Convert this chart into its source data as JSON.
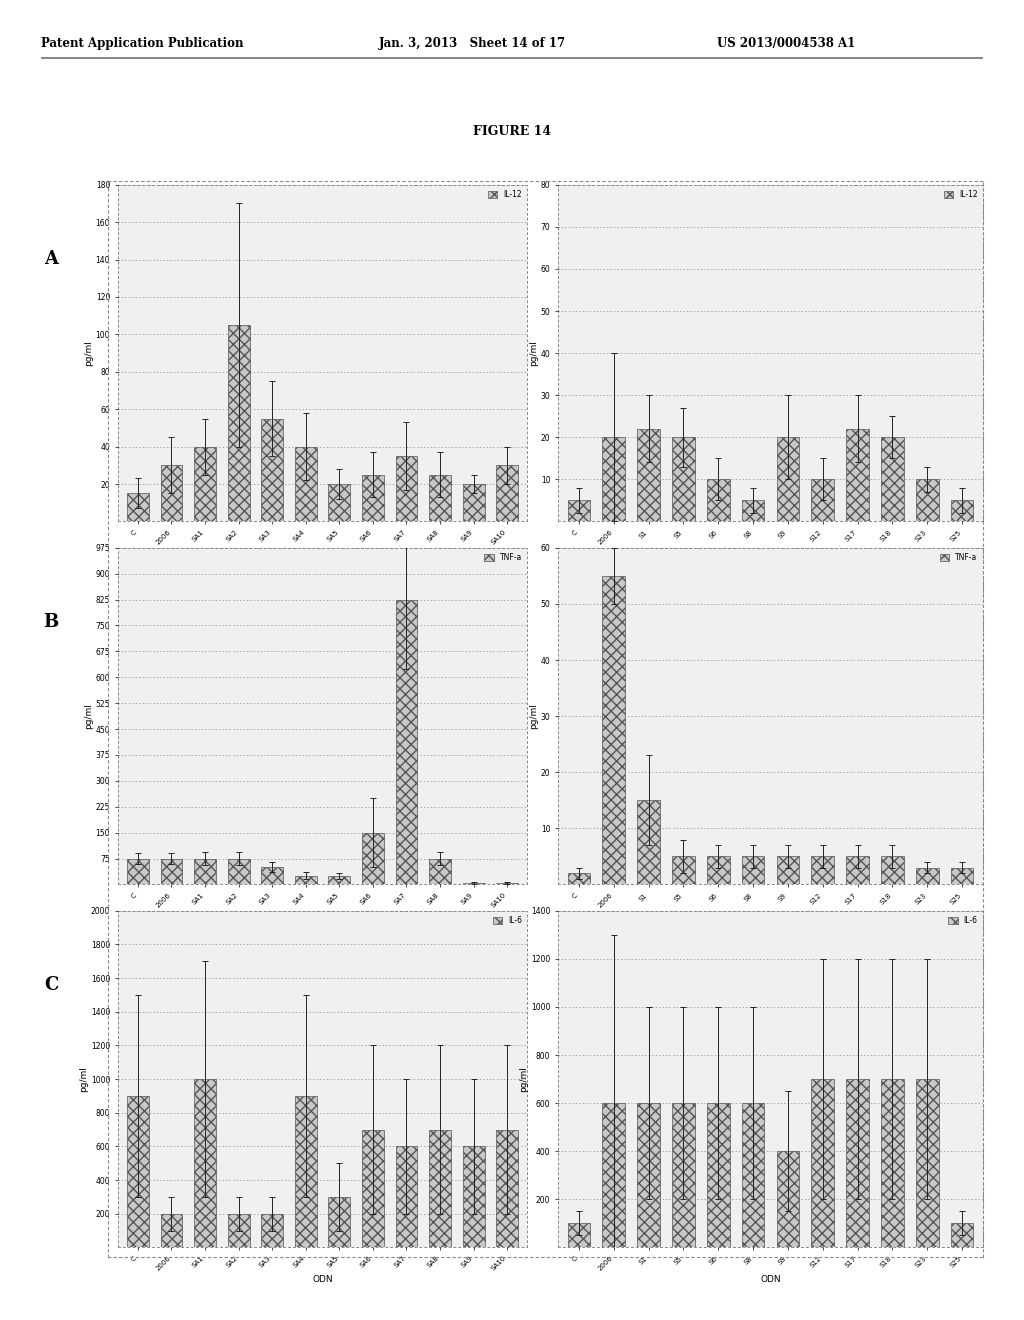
{
  "figure_title": "FIGURE 14",
  "header_left": "Patent Application Publication",
  "header_mid": "Jan. 3, 2013   Sheet 14 of 17",
  "header_right": "US 2013/0004538 A1",
  "row_labels": [
    "A",
    "B",
    "C"
  ],
  "panels": [
    {
      "legend": "IL-12",
      "categories": [
        "C",
        "2006",
        "SA1",
        "SA2",
        "SA3",
        "SA4",
        "SA5",
        "SA6",
        "SA7",
        "SA8",
        "SA9",
        "SA10"
      ],
      "values": [
        15,
        30,
        40,
        105,
        55,
        40,
        20,
        25,
        35,
        25,
        20,
        30
      ],
      "errors": [
        8,
        15,
        15,
        65,
        20,
        18,
        8,
        12,
        18,
        12,
        5,
        10
      ],
      "ylabel": "pg/ml",
      "xlabel": "ODN",
      "ylim": [
        0,
        180
      ],
      "yticks": [
        20,
        40,
        60,
        80,
        100,
        120,
        140,
        160,
        180
      ],
      "hatch": "xxx"
    },
    {
      "legend": "IL-12",
      "categories": [
        "C",
        "2006",
        "S1",
        "S5",
        "S6",
        "S8",
        "S9",
        "S12",
        "S17",
        "S18",
        "S23",
        "S25"
      ],
      "values": [
        5,
        20,
        22,
        20,
        10,
        5,
        20,
        10,
        22,
        20,
        10,
        5
      ],
      "errors": [
        3,
        20,
        8,
        7,
        5,
        3,
        10,
        5,
        8,
        5,
        3,
        3
      ],
      "ylabel": "pg/ml",
      "xlabel": "ODN",
      "ylim": [
        0,
        80
      ],
      "yticks": [
        10,
        20,
        30,
        40,
        50,
        60,
        70,
        80
      ],
      "hatch": "xxx"
    },
    {
      "legend": "TNF-a",
      "categories": [
        "C",
        "2006",
        "SA1",
        "SA2",
        "SA3",
        "SA4",
        "SA5",
        "SA6",
        "SA7",
        "SA8",
        "SA9",
        "SA10"
      ],
      "values": [
        75,
        75,
        75,
        75,
        50,
        25,
        25,
        150,
        825,
        75,
        5,
        5
      ],
      "errors": [
        15,
        15,
        20,
        20,
        15,
        10,
        8,
        100,
        200,
        20,
        3,
        3
      ],
      "ylabel": "pg/ml",
      "xlabel": "ODN",
      "ylim": [
        0,
        975
      ],
      "yticks": [
        75,
        150,
        225,
        300,
        375,
        450,
        525,
        600,
        675,
        750,
        825,
        900,
        975
      ],
      "hatch": "xxx"
    },
    {
      "legend": "TNF-a",
      "categories": [
        "C",
        "2006",
        "S1",
        "S5",
        "S6",
        "S8",
        "S9",
        "S12",
        "S17",
        "S18",
        "S23",
        "S25"
      ],
      "values": [
        2,
        55,
        15,
        5,
        5,
        5,
        5,
        5,
        5,
        5,
        3,
        3
      ],
      "errors": [
        1,
        5,
        8,
        3,
        2,
        2,
        2,
        2,
        2,
        2,
        1,
        1
      ],
      "ylabel": "pg/ml",
      "xlabel": "ODN",
      "ylim": [
        0,
        60
      ],
      "yticks": [
        10,
        20,
        30,
        40,
        50,
        60
      ],
      "hatch": "xxx"
    },
    {
      "legend": "IL-6",
      "categories": [
        "C",
        "2006",
        "SA1",
        "SA2",
        "SA3",
        "SA4",
        "SA5",
        "SA6",
        "SA7",
        "SA8",
        "SA9",
        "SA10"
      ],
      "values": [
        900,
        200,
        1000,
        200,
        200,
        900,
        300,
        700,
        600,
        700,
        600,
        700
      ],
      "errors": [
        600,
        100,
        700,
        100,
        100,
        600,
        200,
        500,
        400,
        500,
        400,
        500
      ],
      "ylabel": "pg/ml",
      "xlabel": "ODN",
      "ylim": [
        0,
        2000
      ],
      "yticks": [
        200,
        400,
        600,
        800,
        1000,
        1200,
        1400,
        1600,
        1800,
        2000
      ],
      "hatch": "xxx"
    },
    {
      "legend": "IL-6",
      "categories": [
        "C",
        "2006",
        "S1",
        "S5",
        "S6",
        "S8",
        "S9",
        "S12",
        "S17",
        "S18",
        "S23",
        "S25"
      ],
      "values": [
        100,
        600,
        600,
        600,
        600,
        600,
        400,
        700,
        700,
        700,
        700,
        100
      ],
      "errors": [
        50,
        700,
        400,
        400,
        400,
        400,
        250,
        500,
        500,
        500,
        500,
        50
      ],
      "ylabel": "pg/ml",
      "xlabel": "ODN",
      "ylim": [
        0,
        1400
      ],
      "yticks": [
        200,
        400,
        600,
        800,
        1000,
        1200,
        1400
      ],
      "hatch": "xxx"
    }
  ],
  "bar_color": "#c8c8c8",
  "bar_edgecolor": "#555555",
  "error_color": "#222222",
  "background_color": "#f0f0f0",
  "panel_bg": "#f0f0f0",
  "grid_color": "#888888",
  "border_color": "#888888"
}
